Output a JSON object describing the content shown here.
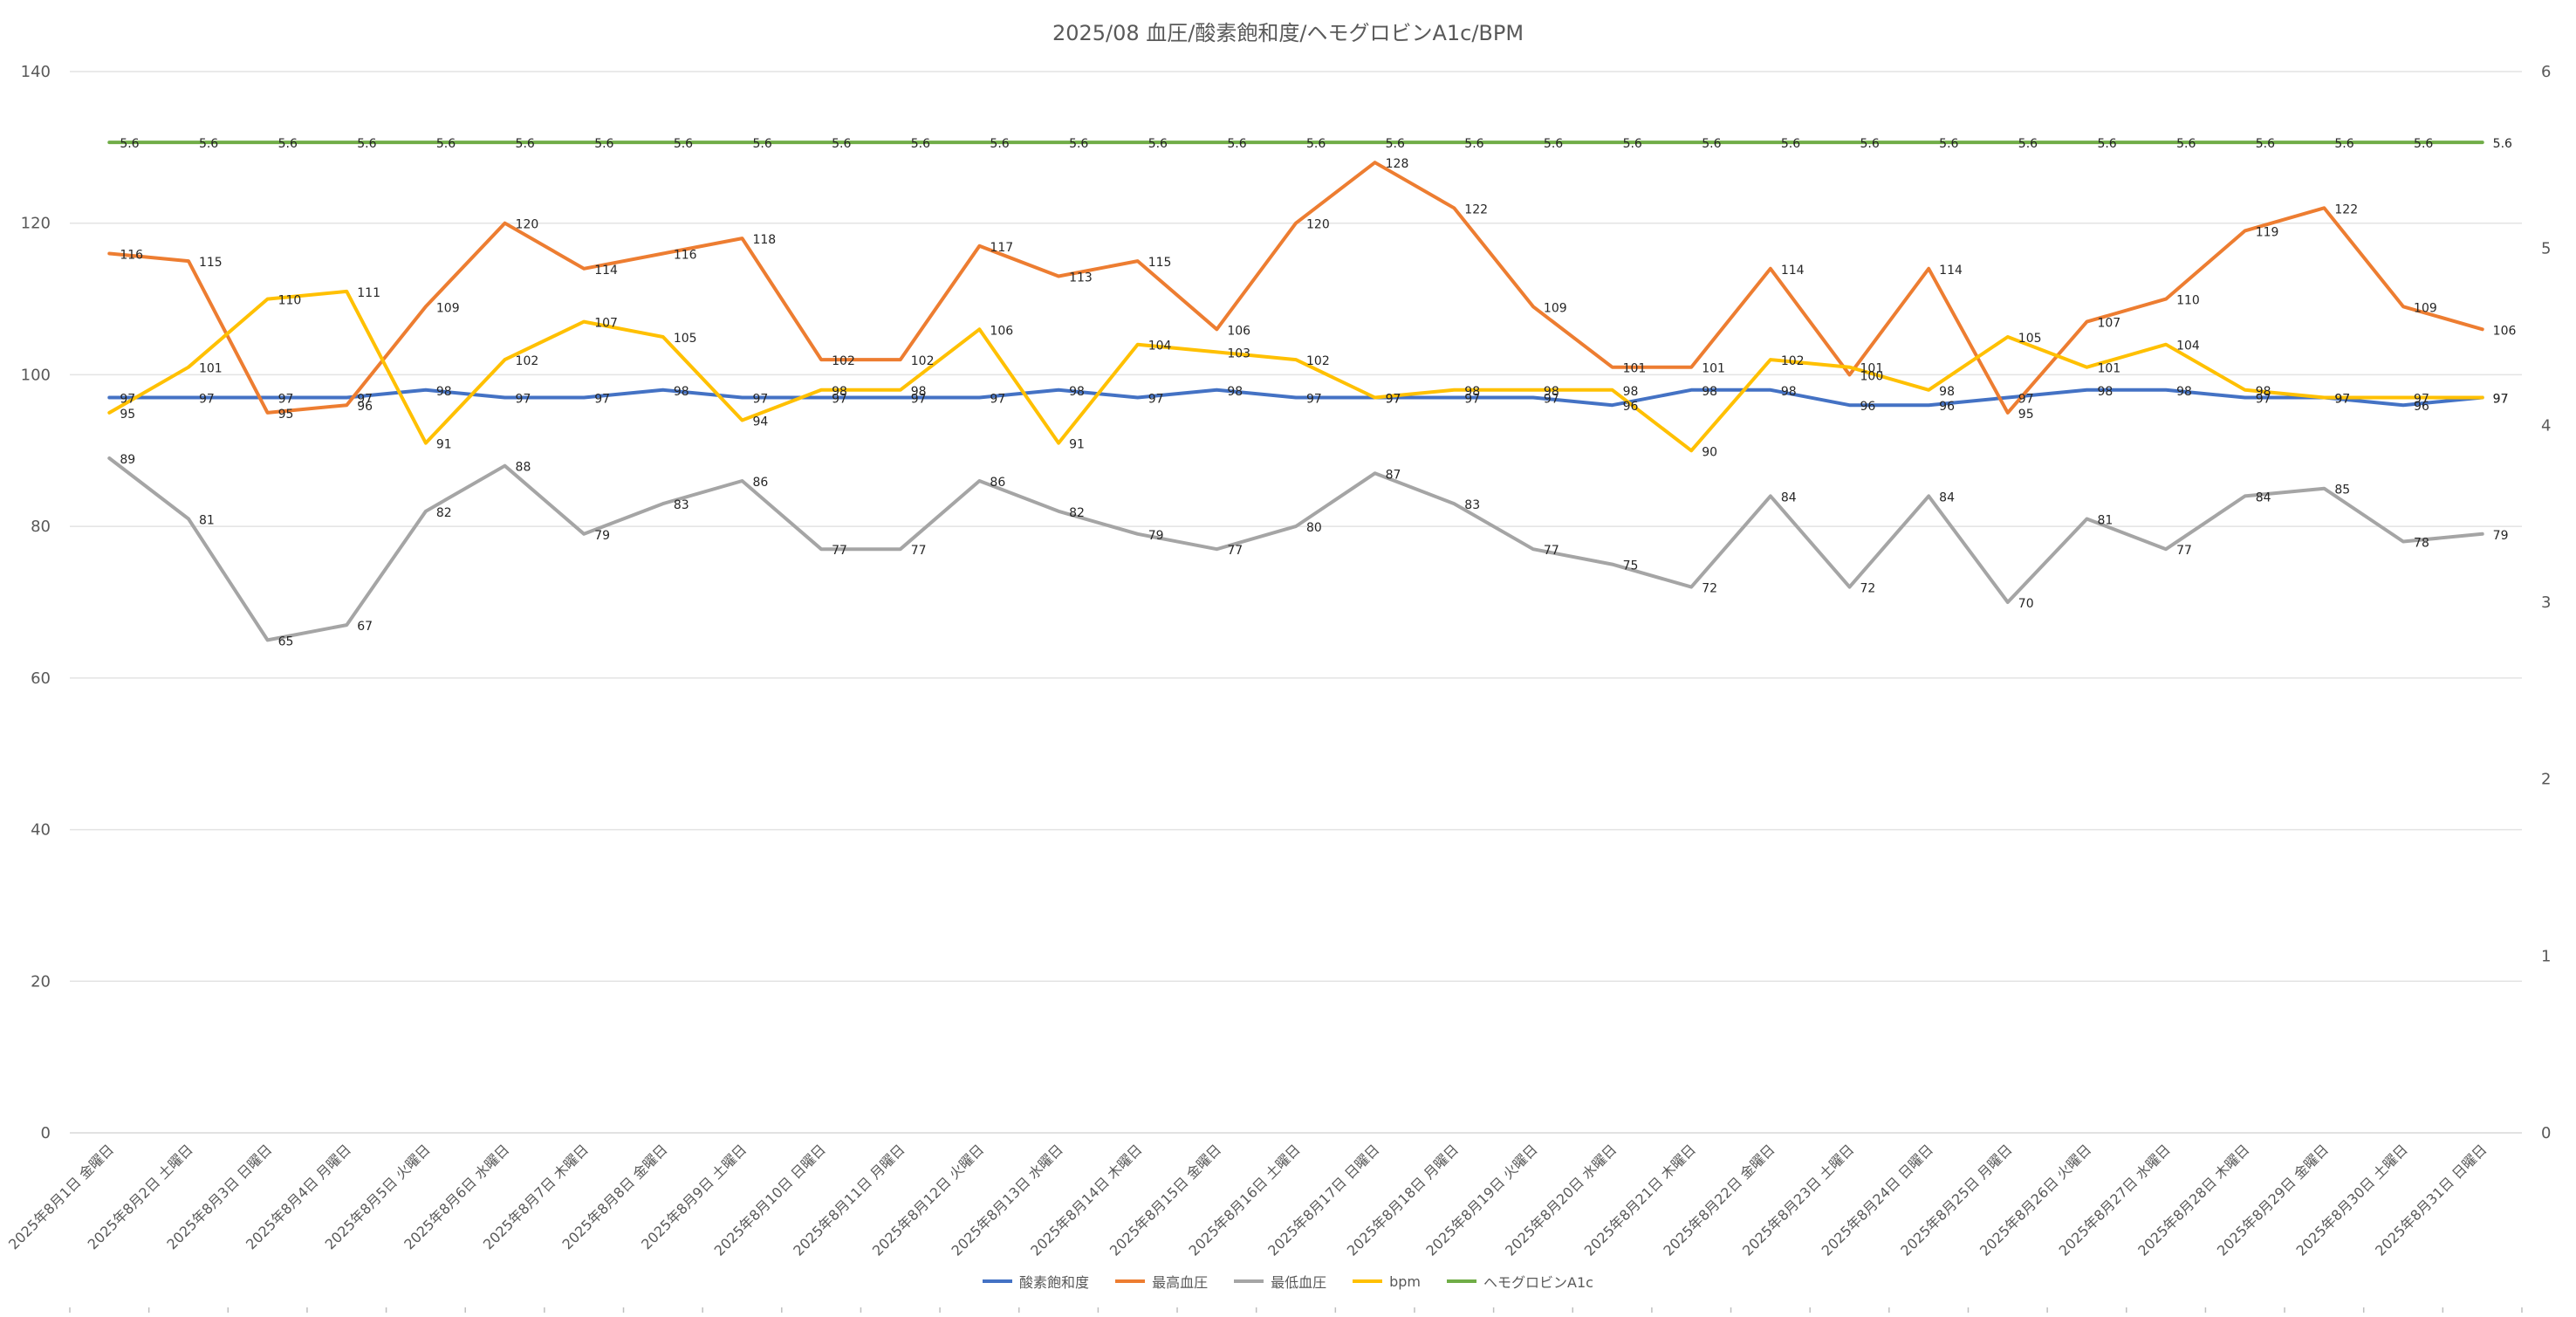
{
  "chart_data": {
    "type": "line",
    "title": "2025/08 血圧/酸素飽和度/ヘモグロビンA1c/BPM",
    "categories": [
      "2025年8月1日 金曜日",
      "2025年8月2日 土曜日",
      "2025年8月3日 日曜日",
      "2025年8月4日 月曜日",
      "2025年8月5日 火曜日",
      "2025年8月6日 水曜日",
      "2025年8月7日 木曜日",
      "2025年8月8日 金曜日",
      "2025年8月9日 土曜日",
      "2025年8月10日 日曜日",
      "2025年8月11日 月曜日",
      "2025年8月12日 火曜日",
      "2025年8月13日 水曜日",
      "2025年8月14日 木曜日",
      "2025年8月15日 金曜日",
      "2025年8月16日 土曜日",
      "2025年8月17日 日曜日",
      "2025年8月18日 月曜日",
      "2025年8月19日 火曜日",
      "2025年8月20日 水曜日",
      "2025年8月21日 木曜日",
      "2025年8月22日 金曜日",
      "2025年8月23日 土曜日",
      "2025年8月24日 日曜日",
      "2025年8月25日 月曜日",
      "2025年8月26日 火曜日",
      "2025年8月27日 水曜日",
      "2025年8月28日 木曜日",
      "2025年8月29日 金曜日",
      "2025年8月30日 土曜日",
      "2025年8月31日 日曜日"
    ],
    "y_left": {
      "min": 0,
      "max": 140,
      "ticks": [
        0,
        20,
        40,
        60,
        80,
        100,
        120,
        140
      ]
    },
    "y_right": {
      "min": 0,
      "max": 6,
      "ticks": [
        0,
        1,
        2,
        3,
        4,
        5,
        6
      ]
    },
    "grid": true,
    "legend_position": "bottom",
    "series": [
      {
        "name": "酸素飽和度",
        "axis": "left",
        "color": "#4472C4",
        "values": [
          97,
          97,
          97,
          97,
          98,
          97,
          97,
          98,
          97,
          97,
          97,
          97,
          98,
          97,
          98,
          97,
          97,
          97,
          97,
          96,
          98,
          98,
          96,
          96,
          97,
          98,
          98,
          97,
          97,
          96,
          97
        ]
      },
      {
        "name": "最高血圧",
        "axis": "left",
        "color": "#ED7D31",
        "values": [
          116,
          115,
          95,
          96,
          109,
          120,
          114,
          116,
          118,
          102,
          102,
          117,
          113,
          115,
          106,
          120,
          128,
          122,
          109,
          101,
          101,
          114,
          100,
          114,
          95,
          107,
          110,
          119,
          122,
          109,
          106
        ]
      },
      {
        "name": "最低血圧",
        "axis": "left",
        "color": "#A5A5A5",
        "values": [
          89,
          81,
          65,
          67,
          82,
          88,
          79,
          83,
          86,
          77,
          77,
          86,
          82,
          79,
          77,
          80,
          87,
          83,
          77,
          75,
          72,
          84,
          72,
          84,
          70,
          81,
          77,
          84,
          85,
          78,
          79
        ]
      },
      {
        "name": "bpm",
        "axis": "left",
        "color": "#FFC000",
        "values": [
          95,
          101,
          110,
          111,
          91,
          102,
          107,
          105,
          94,
          98,
          98,
          106,
          91,
          104,
          103,
          102,
          97,
          98,
          98,
          98,
          90,
          102,
          101,
          98,
          105,
          101,
          104,
          98,
          97,
          97,
          97
        ]
      },
      {
        "name": "ヘモグロビンA1c",
        "axis": "right",
        "color": "#70AD47",
        "values": [
          5.6,
          5.6,
          5.6,
          5.6,
          5.6,
          5.6,
          5.6,
          5.6,
          5.6,
          5.6,
          5.6,
          5.6,
          5.6,
          5.6,
          5.6,
          5.6,
          5.6,
          5.6,
          5.6,
          5.6,
          5.6,
          5.6,
          5.6,
          5.6,
          5.6,
          5.6,
          5.6,
          5.6,
          5.6,
          5.6,
          5.6
        ]
      }
    ]
  }
}
